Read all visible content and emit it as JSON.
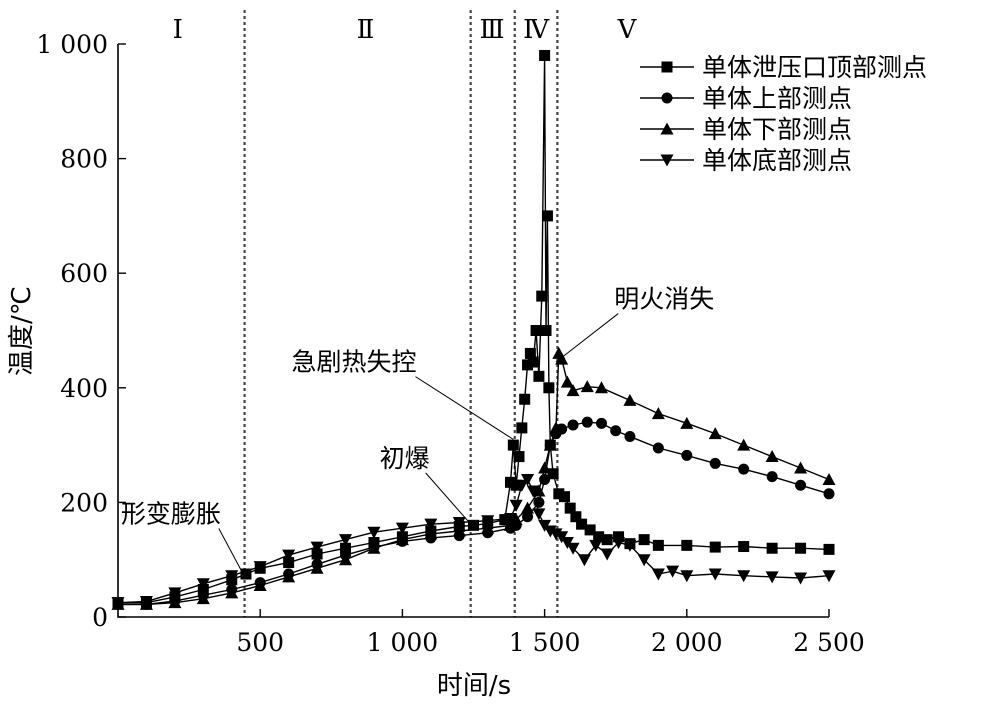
{
  "chart_data": {
    "type": "line",
    "xlabel": "时间/s",
    "ylabel": "温度/℃",
    "xlim": [
      0,
      2500
    ],
    "ylim": [
      0,
      1000
    ],
    "xticks": [
      {
        "value": 500,
        "label": "500"
      },
      {
        "value": 1000,
        "label": "1 000"
      },
      {
        "value": 1500,
        "label": "1 500"
      },
      {
        "value": 2000,
        "label": "2 000"
      },
      {
        "value": 2500,
        "label": "2 500"
      }
    ],
    "yticks": [
      {
        "value": 0,
        "label": "0"
      },
      {
        "value": 200,
        "label": "200"
      },
      {
        "value": 400,
        "label": "400"
      },
      {
        "value": 600,
        "label": "600"
      },
      {
        "value": 800,
        "label": "800"
      },
      {
        "value": 1000,
        "label": "1 000"
      }
    ],
    "legend_position": "top-right",
    "stage_dividers": [
      445,
      1240,
      1395,
      1545
    ],
    "stages": [
      {
        "label": "Ⅰ",
        "x": 210
      },
      {
        "label": "Ⅱ",
        "x": 870
      },
      {
        "label": "Ⅲ",
        "x": 1315
      },
      {
        "label": "Ⅳ",
        "x": 1470
      },
      {
        "label": "Ⅴ",
        "x": 1790
      }
    ],
    "annotations": [
      {
        "text": "形变膨胀",
        "point": [
          440,
          75
        ],
        "label_at": [
          10,
          165
        ]
      },
      {
        "text": "初爆",
        "point": [
          1235,
          165
        ],
        "label_at": [
          920,
          262
        ]
      },
      {
        "text": "急剧热失控",
        "point": [
          1390,
          310
        ],
        "label_at": [
          610,
          430
        ]
      },
      {
        "text": "明火消失",
        "point": [
          1540,
          445
        ],
        "label_at": [
          1745,
          540
        ]
      }
    ],
    "series": [
      {
        "name": "单体泄压口顶部测点",
        "marker": "square",
        "points": [
          [
            0,
            25
          ],
          [
            100,
            25
          ],
          [
            200,
            35
          ],
          [
            300,
            48
          ],
          [
            400,
            65
          ],
          [
            450,
            75
          ],
          [
            500,
            85
          ],
          [
            600,
            95
          ],
          [
            700,
            110
          ],
          [
            800,
            120
          ],
          [
            900,
            130
          ],
          [
            1000,
            140
          ],
          [
            1100,
            150
          ],
          [
            1200,
            158
          ],
          [
            1250,
            160
          ],
          [
            1300,
            163
          ],
          [
            1360,
            170
          ],
          [
            1380,
            235
          ],
          [
            1390,
            300
          ],
          [
            1400,
            230
          ],
          [
            1410,
            280
          ],
          [
            1420,
            330
          ],
          [
            1430,
            380
          ],
          [
            1440,
            440
          ],
          [
            1450,
            460
          ],
          [
            1460,
            445
          ],
          [
            1470,
            500
          ],
          [
            1480,
            420
          ],
          [
            1490,
            560
          ],
          [
            1500,
            980
          ],
          [
            1505,
            500
          ],
          [
            1510,
            700
          ],
          [
            1515,
            400
          ],
          [
            1520,
            300
          ],
          [
            1530,
            250
          ],
          [
            1550,
            215
          ],
          [
            1570,
            210
          ],
          [
            1590,
            190
          ],
          [
            1610,
            175
          ],
          [
            1630,
            162
          ],
          [
            1660,
            152
          ],
          [
            1690,
            140
          ],
          [
            1720,
            135
          ],
          [
            1760,
            140
          ],
          [
            1800,
            128
          ],
          [
            1850,
            135
          ],
          [
            1900,
            125
          ],
          [
            2000,
            125
          ],
          [
            2100,
            122
          ],
          [
            2200,
            123
          ],
          [
            2300,
            120
          ],
          [
            2400,
            120
          ],
          [
            2500,
            118
          ]
        ]
      },
      {
        "name": "单体上部测点",
        "marker": "circle",
        "points": [
          [
            0,
            22
          ],
          [
            100,
            22
          ],
          [
            200,
            28
          ],
          [
            300,
            38
          ],
          [
            400,
            48
          ],
          [
            500,
            60
          ],
          [
            600,
            75
          ],
          [
            700,
            92
          ],
          [
            800,
            108
          ],
          [
            900,
            122
          ],
          [
            1000,
            132
          ],
          [
            1100,
            138
          ],
          [
            1200,
            142
          ],
          [
            1300,
            147
          ],
          [
            1380,
            155
          ],
          [
            1400,
            160
          ],
          [
            1440,
            175
          ],
          [
            1480,
            200
          ],
          [
            1500,
            240
          ],
          [
            1520,
            300
          ],
          [
            1540,
            320
          ],
          [
            1560,
            328
          ],
          [
            1600,
            335
          ],
          [
            1650,
            340
          ],
          [
            1700,
            338
          ],
          [
            1750,
            325
          ],
          [
            1800,
            315
          ],
          [
            1900,
            295
          ],
          [
            2000,
            282
          ],
          [
            2100,
            268
          ],
          [
            2200,
            258
          ],
          [
            2300,
            245
          ],
          [
            2400,
            230
          ],
          [
            2500,
            215
          ]
        ]
      },
      {
        "name": "单体下部测点",
        "marker": "triangle-up",
        "points": [
          [
            0,
            22
          ],
          [
            100,
            22
          ],
          [
            200,
            25
          ],
          [
            300,
            32
          ],
          [
            400,
            42
          ],
          [
            500,
            55
          ],
          [
            600,
            70
          ],
          [
            700,
            85
          ],
          [
            800,
            100
          ],
          [
            900,
            120
          ],
          [
            1000,
            135
          ],
          [
            1100,
            145
          ],
          [
            1200,
            150
          ],
          [
            1300,
            155
          ],
          [
            1380,
            160
          ],
          [
            1400,
            170
          ],
          [
            1440,
            190
          ],
          [
            1480,
            220
          ],
          [
            1500,
            260
          ],
          [
            1520,
            300
          ],
          [
            1540,
            330
          ],
          [
            1550,
            460
          ],
          [
            1560,
            450
          ],
          [
            1580,
            410
          ],
          [
            1600,
            395
          ],
          [
            1650,
            402
          ],
          [
            1700,
            400
          ],
          [
            1800,
            378
          ],
          [
            1900,
            355
          ],
          [
            2000,
            338
          ],
          [
            2100,
            320
          ],
          [
            2200,
            300
          ],
          [
            2300,
            280
          ],
          [
            2400,
            260
          ],
          [
            2500,
            240
          ]
        ]
      },
      {
        "name": "单体底部测点",
        "marker": "triangle-down",
        "points": [
          [
            0,
            25
          ],
          [
            100,
            27
          ],
          [
            200,
            42
          ],
          [
            300,
            58
          ],
          [
            400,
            72
          ],
          [
            500,
            88
          ],
          [
            600,
            108
          ],
          [
            700,
            122
          ],
          [
            800,
            135
          ],
          [
            900,
            148
          ],
          [
            1000,
            155
          ],
          [
            1100,
            162
          ],
          [
            1200,
            165
          ],
          [
            1300,
            168
          ],
          [
            1380,
            172
          ],
          [
            1400,
            195
          ],
          [
            1420,
            230
          ],
          [
            1440,
            240
          ],
          [
            1460,
            220
          ],
          [
            1480,
            180
          ],
          [
            1500,
            160
          ],
          [
            1520,
            150
          ],
          [
            1540,
            145
          ],
          [
            1560,
            140
          ],
          [
            1580,
            130
          ],
          [
            1600,
            120
          ],
          [
            1640,
            100
          ],
          [
            1680,
            125
          ],
          [
            1720,
            110
          ],
          [
            1760,
            130
          ],
          [
            1800,
            125
          ],
          [
            1850,
            100
          ],
          [
            1900,
            75
          ],
          [
            1950,
            80
          ],
          [
            2000,
            72
          ],
          [
            2100,
            75
          ],
          [
            2200,
            72
          ],
          [
            2300,
            70
          ],
          [
            2400,
            68
          ],
          [
            2500,
            72
          ]
        ]
      }
    ]
  }
}
